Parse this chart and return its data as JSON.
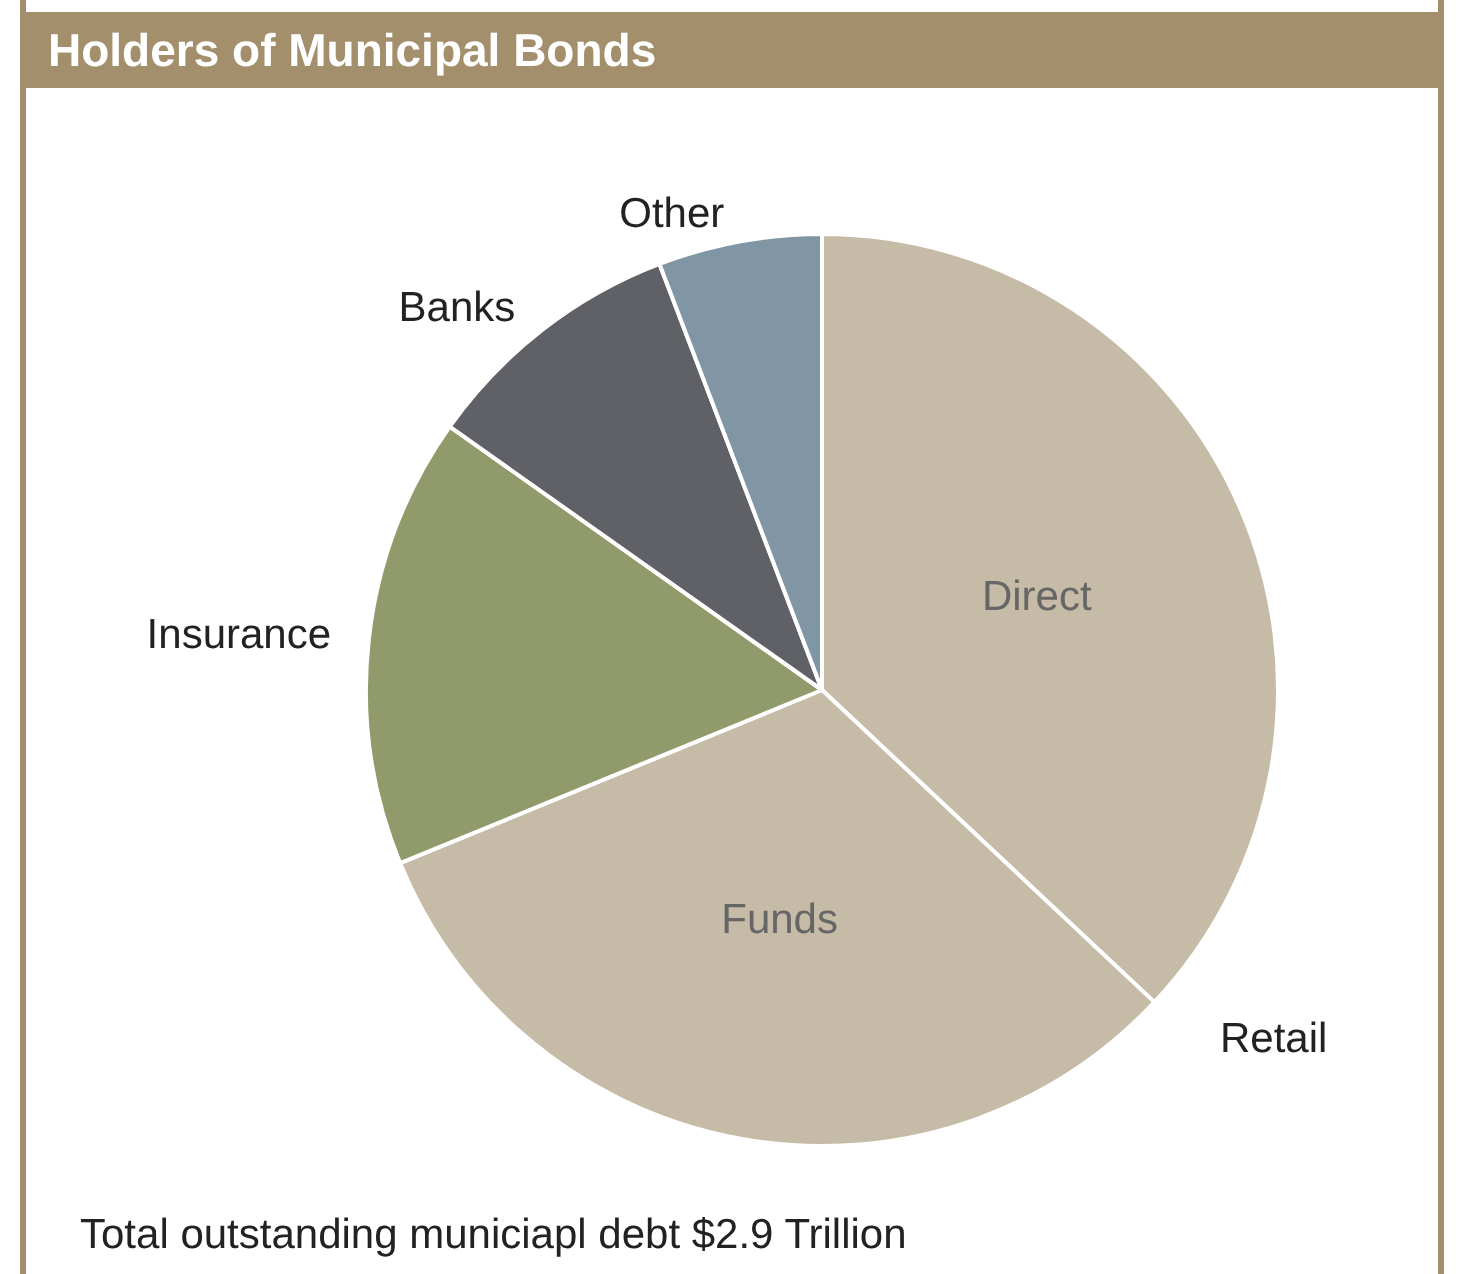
{
  "chart_data": {
    "type": "pie",
    "title": "Holders of Municipal Bonds",
    "categories": [
      "Direct",
      "Funds",
      "Insurance",
      "Banks",
      "Other"
    ],
    "values": [
      37,
      31.8,
      16,
      9.4,
      5.8
    ],
    "colors": [
      "#c5bba6",
      "#c5bba6",
      "#919a6a",
      "#5f6166",
      "#8096a5"
    ],
    "annotations": [
      "Retail",
      "Total outstanding municiapl debt $2.9 Trillion"
    ],
    "legend": false
  }
}
